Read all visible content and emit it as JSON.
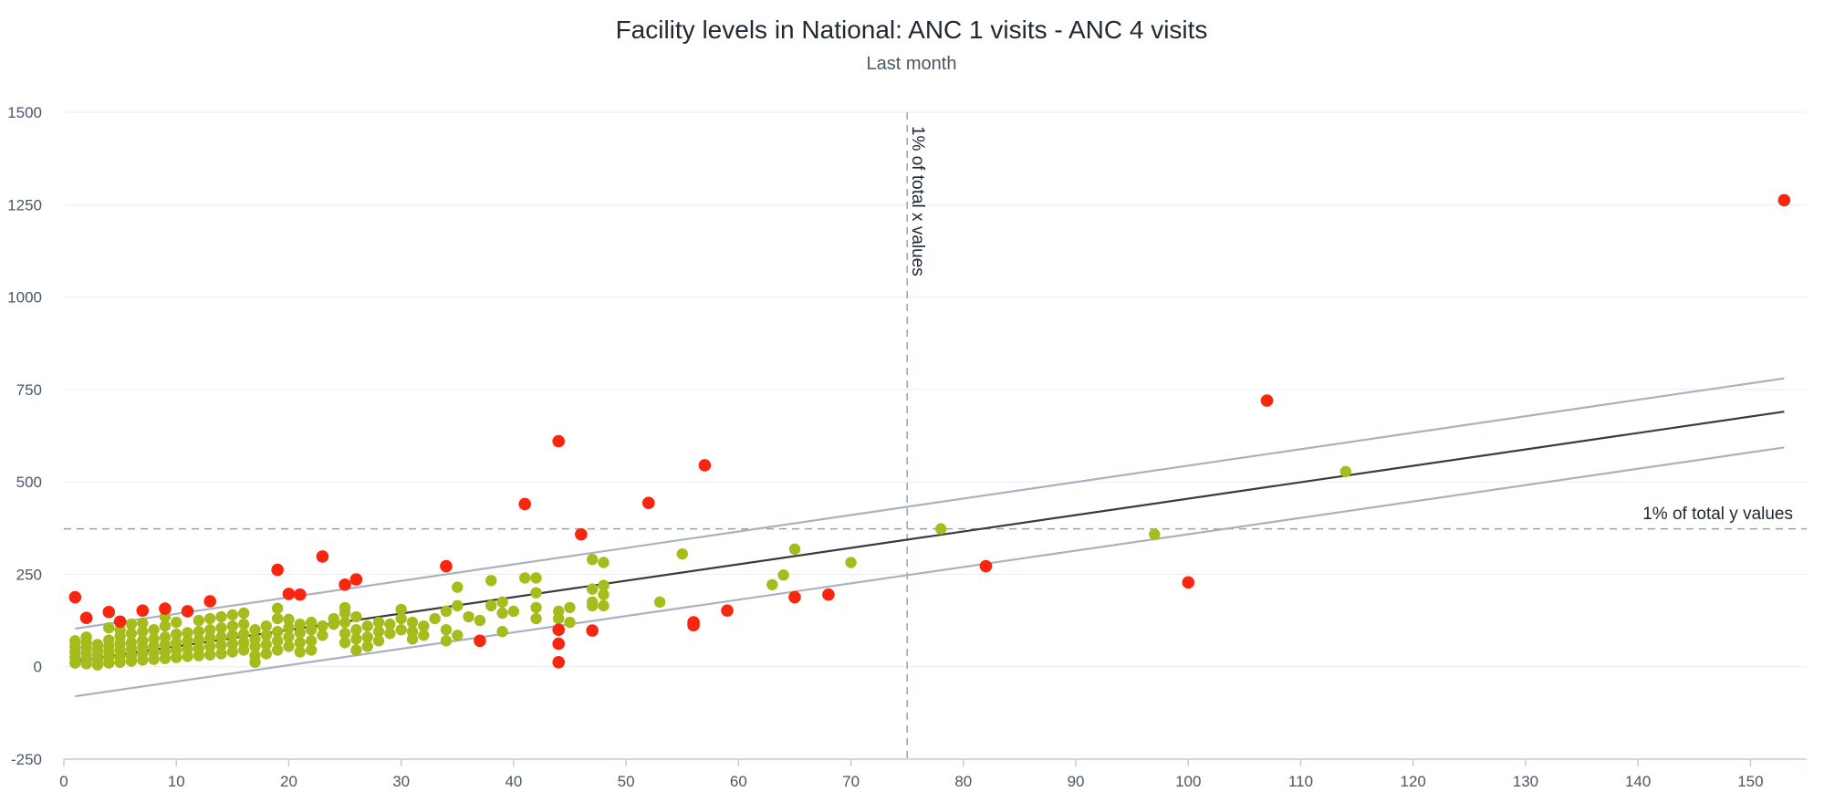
{
  "chart_data": {
    "type": "scatter",
    "title": "Facility levels in National: ANC 1 visits - ANC 4 visits",
    "subtitle": "Last month",
    "xlim": [
      0,
      155
    ],
    "ylim": [
      -250,
      1500
    ],
    "x_ticks": [
      "0",
      "10",
      "20",
      "30",
      "40",
      "50",
      "60",
      "70",
      "80",
      "90",
      "100",
      "110",
      "120",
      "130",
      "140",
      "150"
    ],
    "y_ticks": [
      "-250",
      "0",
      "250",
      "500",
      "750",
      "1000",
      "1250",
      "1500"
    ],
    "grid": true,
    "colors": {
      "normal": "#a6bc1d",
      "outlier": "#f8260e",
      "trend": "#3b3b3b",
      "band": "#a9b2bf",
      "reference": "#9aa3ad"
    },
    "trend_line": {
      "x": [
        1,
        153
      ],
      "y": [
        15,
        690
      ]
    },
    "upper_band": {
      "x": [
        1,
        153
      ],
      "y": [
        103,
        780
      ]
    },
    "lower_band": {
      "x": [
        1,
        153
      ],
      "y": [
        -80,
        593
      ]
    },
    "x_reference": {
      "value": 75,
      "label": "1% of total x values"
    },
    "y_reference": {
      "value": 373,
      "label": "1% of total y values"
    },
    "outliers": [
      [
        1,
        188
      ],
      [
        2,
        132
      ],
      [
        4,
        148
      ],
      [
        5,
        122
      ],
      [
        7,
        152
      ],
      [
        9,
        157
      ],
      [
        11,
        150
      ],
      [
        13,
        177
      ],
      [
        19,
        262
      ],
      [
        20,
        197
      ],
      [
        21,
        195
      ],
      [
        23,
        298
      ],
      [
        25,
        222
      ],
      [
        26,
        236
      ],
      [
        34,
        272
      ],
      [
        37,
        70
      ],
      [
        41,
        440
      ],
      [
        44,
        610
      ],
      [
        44,
        100
      ],
      [
        44,
        62
      ],
      [
        44,
        12
      ],
      [
        46,
        358
      ],
      [
        47,
        98
      ],
      [
        52,
        443
      ],
      [
        56,
        120
      ],
      [
        56,
        112
      ],
      [
        57,
        545
      ],
      [
        59,
        152
      ],
      [
        65,
        188
      ],
      [
        68,
        195
      ],
      [
        82,
        272
      ],
      [
        100,
        228
      ],
      [
        107,
        720
      ],
      [
        153,
        1262
      ]
    ],
    "normal_points": [
      [
        1,
        10
      ],
      [
        1,
        25
      ],
      [
        1,
        40
      ],
      [
        1,
        55
      ],
      [
        1,
        70
      ],
      [
        2,
        8
      ],
      [
        2,
        20
      ],
      [
        2,
        35
      ],
      [
        2,
        50
      ],
      [
        2,
        65
      ],
      [
        2,
        80
      ],
      [
        3,
        5
      ],
      [
        3,
        18
      ],
      [
        3,
        30
      ],
      [
        3,
        45
      ],
      [
        3,
        60
      ],
      [
        4,
        10
      ],
      [
        4,
        25
      ],
      [
        4,
        40
      ],
      [
        4,
        55
      ],
      [
        4,
        72
      ],
      [
        4,
        105
      ],
      [
        5,
        12
      ],
      [
        5,
        28
      ],
      [
        5,
        45
      ],
      [
        5,
        62
      ],
      [
        5,
        82
      ],
      [
        5,
        100
      ],
      [
        6,
        15
      ],
      [
        6,
        30
      ],
      [
        6,
        48
      ],
      [
        6,
        65
      ],
      [
        6,
        90
      ],
      [
        6,
        115
      ],
      [
        7,
        18
      ],
      [
        7,
        35
      ],
      [
        7,
        52
      ],
      [
        7,
        70
      ],
      [
        7,
        95
      ],
      [
        7,
        118
      ],
      [
        8,
        20
      ],
      [
        8,
        38
      ],
      [
        8,
        55
      ],
      [
        8,
        75
      ],
      [
        8,
        100
      ],
      [
        9,
        22
      ],
      [
        9,
        40
      ],
      [
        9,
        60
      ],
      [
        9,
        80
      ],
      [
        9,
        110
      ],
      [
        9,
        135
      ],
      [
        10,
        25
      ],
      [
        10,
        45
      ],
      [
        10,
        65
      ],
      [
        10,
        88
      ],
      [
        10,
        120
      ],
      [
        11,
        28
      ],
      [
        11,
        48
      ],
      [
        11,
        70
      ],
      [
        11,
        92
      ],
      [
        12,
        30
      ],
      [
        12,
        50
      ],
      [
        12,
        72
      ],
      [
        12,
        95
      ],
      [
        12,
        125
      ],
      [
        13,
        32
      ],
      [
        13,
        55
      ],
      [
        13,
        78
      ],
      [
        13,
        100
      ],
      [
        13,
        130
      ],
      [
        14,
        35
      ],
      [
        14,
        58
      ],
      [
        14,
        80
      ],
      [
        14,
        105
      ],
      [
        14,
        135
      ],
      [
        15,
        40
      ],
      [
        15,
        62
      ],
      [
        15,
        85
      ],
      [
        15,
        110
      ],
      [
        15,
        140
      ],
      [
        16,
        45
      ],
      [
        16,
        65
      ],
      [
        16,
        88
      ],
      [
        16,
        115
      ],
      [
        16,
        145
      ],
      [
        17,
        12
      ],
      [
        17,
        30
      ],
      [
        17,
        55
      ],
      [
        17,
        75
      ],
      [
        17,
        100
      ],
      [
        18,
        35
      ],
      [
        18,
        60
      ],
      [
        18,
        85
      ],
      [
        18,
        110
      ],
      [
        19,
        45
      ],
      [
        19,
        70
      ],
      [
        19,
        95
      ],
      [
        19,
        130
      ],
      [
        19,
        158
      ],
      [
        20,
        55
      ],
      [
        20,
        80
      ],
      [
        20,
        105
      ],
      [
        20,
        128
      ],
      [
        21,
        40
      ],
      [
        21,
        65
      ],
      [
        21,
        92
      ],
      [
        21,
        115
      ],
      [
        22,
        45
      ],
      [
        22,
        70
      ],
      [
        22,
        100
      ],
      [
        22,
        120
      ],
      [
        23,
        85
      ],
      [
        23,
        110
      ],
      [
        24,
        115
      ],
      [
        24,
        130
      ],
      [
        25,
        65
      ],
      [
        25,
        90
      ],
      [
        25,
        120
      ],
      [
        25,
        145
      ],
      [
        25,
        160
      ],
      [
        26,
        45
      ],
      [
        26,
        75
      ],
      [
        26,
        100
      ],
      [
        26,
        135
      ],
      [
        27,
        55
      ],
      [
        27,
        80
      ],
      [
        27,
        110
      ],
      [
        28,
        70
      ],
      [
        28,
        95
      ],
      [
        28,
        120
      ],
      [
        29,
        90
      ],
      [
        29,
        115
      ],
      [
        30,
        100
      ],
      [
        30,
        130
      ],
      [
        30,
        155
      ],
      [
        31,
        75
      ],
      [
        31,
        95
      ],
      [
        31,
        120
      ],
      [
        32,
        85
      ],
      [
        32,
        110
      ],
      [
        33,
        130
      ],
      [
        34,
        70
      ],
      [
        34,
        100
      ],
      [
        34,
        150
      ],
      [
        35,
        85
      ],
      [
        35,
        165
      ],
      [
        35,
        215
      ],
      [
        36,
        135
      ],
      [
        37,
        125
      ],
      [
        38,
        165
      ],
      [
        38,
        233
      ],
      [
        39,
        95
      ],
      [
        39,
        145
      ],
      [
        39,
        175
      ],
      [
        40,
        150
      ],
      [
        41,
        240
      ],
      [
        42,
        130
      ],
      [
        42,
        160
      ],
      [
        42,
        200
      ],
      [
        42,
        240
      ],
      [
        44,
        130
      ],
      [
        44,
        150
      ],
      [
        45,
        120
      ],
      [
        45,
        160
      ],
      [
        47,
        165
      ],
      [
        47,
        175
      ],
      [
        47,
        210
      ],
      [
        47,
        290
      ],
      [
        48,
        165
      ],
      [
        48,
        195
      ],
      [
        48,
        220
      ],
      [
        48,
        282
      ],
      [
        53,
        175
      ],
      [
        55,
        305
      ],
      [
        63,
        222
      ],
      [
        64,
        248
      ],
      [
        65,
        318
      ],
      [
        70,
        282
      ],
      [
        78,
        373
      ],
      [
        97,
        358
      ],
      [
        114,
        528
      ]
    ]
  }
}
